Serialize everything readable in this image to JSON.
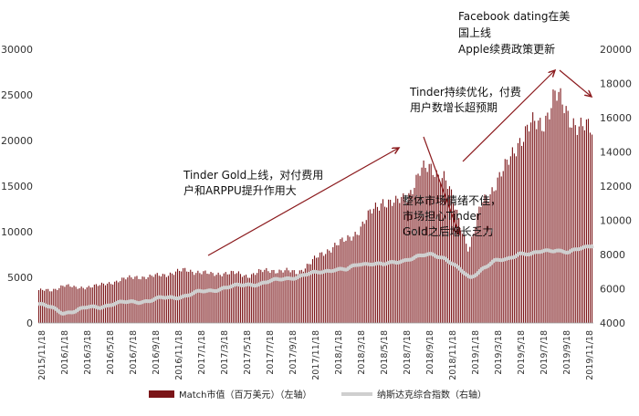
{
  "chart_data": {
    "type": "bar+line",
    "title": "",
    "left_axis": {
      "label": "Match市值（百万美元）（左轴）",
      "min": 0,
      "max": 30000,
      "ticks": [
        "0",
        "5000",
        "10000",
        "15000",
        "20000",
        "25000",
        "30000"
      ]
    },
    "right_axis": {
      "label": "纳斯达克综合指数（右轴）",
      "min": 4000,
      "max": 20000,
      "ticks": [
        "4000",
        "6000",
        "8000",
        "10000",
        "12000",
        "14000",
        "16000",
        "18000",
        "20000"
      ]
    },
    "x_labels": [
      "2015/11/18",
      "2016/1/18",
      "2016/3/18",
      "2016/5/18",
      "2016/7/18",
      "2016/9/18",
      "2016/11/18",
      "2017/1/18",
      "2017/3/18",
      "2017/5/18",
      "2017/7/18",
      "2017/9/18",
      "2017/11/18",
      "2018/1/18",
      "2018/3/18",
      "2018/5/18",
      "2018/7/18",
      "2018/9/18",
      "2018/11/18",
      "2019/1/18",
      "2019/3/18",
      "2019/5/18",
      "2019/7/18",
      "2019/9/18",
      "2019/11/18"
    ],
    "series": [
      {
        "name": "Match市值（百万美元）（左轴）",
        "axis": "left",
        "kind": "bar",
        "color": "#7b1518",
        "anchors": [
          3600,
          3500,
          4200,
          3800,
          4000,
          4100,
          4500,
          4800,
          5100,
          5000,
          5300,
          5500,
          5800,
          5600,
          5300,
          5500,
          5400,
          5200,
          5600,
          5800,
          5700,
          5500,
          6500,
          7500,
          8500,
          9000,
          10200,
          12000,
          13500,
          13000,
          14000,
          16500,
          17000,
          16000,
          12000,
          8000,
          13000,
          15000,
          17000,
          20000,
          21500,
          22000,
          25000,
          23000,
          21500,
          21000
        ]
      },
      {
        "name": "纳斯达克综合指数（右轴）",
        "axis": "right",
        "kind": "line",
        "color": "#cfcfcf",
        "anchors": [
          5100,
          4900,
          4600,
          4700,
          4900,
          4950,
          5100,
          5200,
          5250,
          5300,
          5450,
          5500,
          5600,
          5800,
          5900,
          6050,
          6150,
          6250,
          6300,
          6450,
          6600,
          6700,
          6850,
          7000,
          7150,
          7100,
          7450,
          7500,
          7400,
          7550,
          7750,
          7900,
          8000,
          7800,
          7200,
          6600,
          7200,
          7600,
          7700,
          8100,
          8000,
          8200,
          8300,
          8100,
          8350,
          8600
        ]
      }
    ],
    "annotations": [
      {
        "lines": [
          "Tinder Gold上线，对付费用",
          "户和ARPPU提升作用大"
        ]
      },
      {
        "lines": [
          "整体市场情绪不佳，",
          "市场担心Tinder",
          "Gold之后增长乏力"
        ]
      },
      {
        "lines": [
          "Tinder持续优化，付费",
          "用户数增长超预期"
        ]
      },
      {
        "lines": [
          "Facebook dating在美",
          "国上线",
          "Apple续费政策更新"
        ]
      }
    ],
    "legend": [
      "Match市值（百万美元）（左轴）",
      "纳斯达克综合指数（右轴）"
    ],
    "legend_position": "bottom"
  }
}
